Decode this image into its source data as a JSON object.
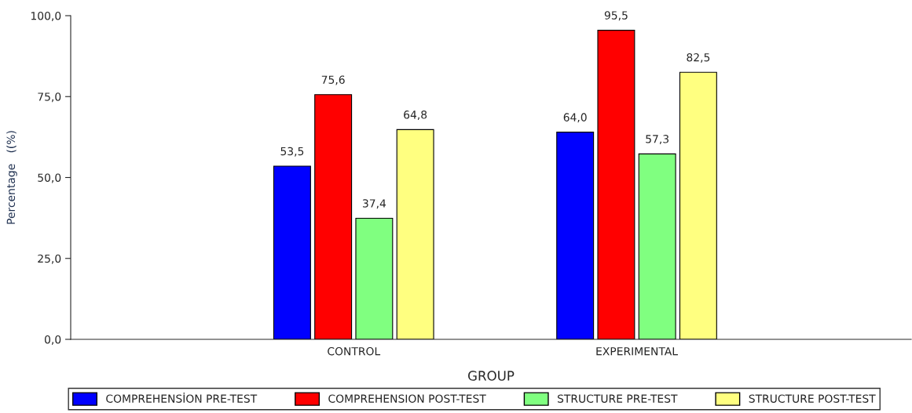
{
  "chart_data": {
    "type": "bar",
    "xlabel": "GROUP",
    "ylabel": "Percentage   ((%)",
    "categories": [
      "CONTROL",
      "EXPERIMENTAL"
    ],
    "series": [
      {
        "name": "COMPREHENSİON PRE-TEST",
        "color": "#0000ff",
        "values": [
          53.5,
          64.0
        ],
        "value_labels": [
          "53,5",
          "64,0"
        ]
      },
      {
        "name": "COMPREHENSION POST-TEST",
        "color": "#ff0000",
        "values": [
          75.6,
          95.5
        ],
        "value_labels": [
          "75,6",
          "95,5"
        ]
      },
      {
        "name": "STRUCTURE PRE-TEST",
        "color": "#80ff80",
        "values": [
          37.4,
          57.3
        ],
        "value_labels": [
          "37,4",
          "57,3"
        ]
      },
      {
        "name": "STRUCTURE POST-TEST",
        "color": "#ffff80",
        "values": [
          64.8,
          82.5
        ],
        "value_labels": [
          "64,8",
          "82,5"
        ]
      }
    ],
    "ylim": [
      0,
      100
    ],
    "yticks": [
      {
        "value": 0,
        "label": "0,0"
      },
      {
        "value": 25,
        "label": "25,0"
      },
      {
        "value": 50,
        "label": "50,0"
      },
      {
        "value": 75,
        "label": "75,0"
      },
      {
        "value": 100,
        "label": "100,0"
      }
    ],
    "grid": false,
    "legend": "bottom"
  }
}
